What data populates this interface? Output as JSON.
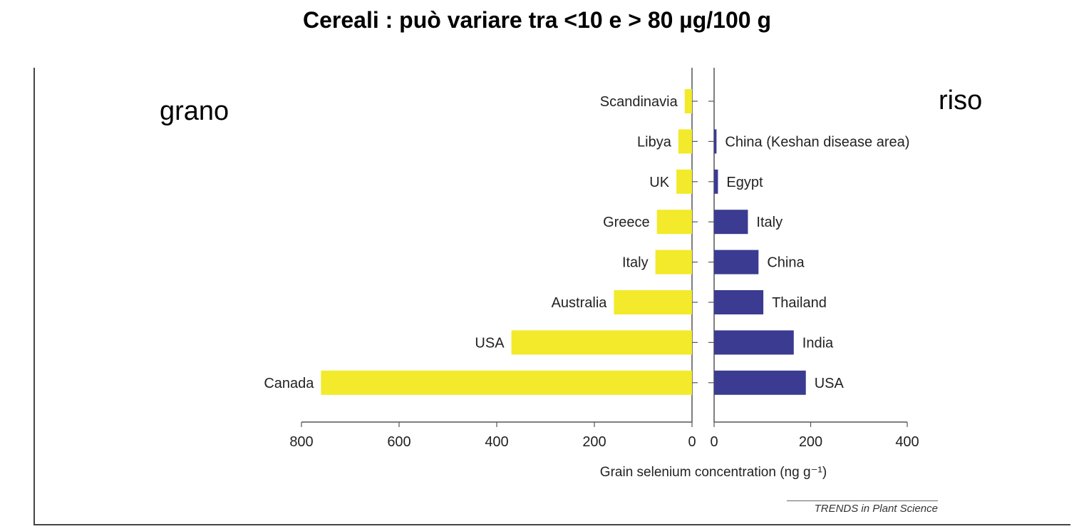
{
  "title": "Cereali : può variare tra <10 e > 80 µg/100 g",
  "annotations": {
    "left": "grano",
    "right": "riso"
  },
  "credit": "TRENDS in Plant Science",
  "colors": {
    "wheat_bar": "#f2ea2a",
    "rice_bar": "#3b3b92",
    "axis": "#555555"
  },
  "chart_data": [
    {
      "type": "bar",
      "orientation": "horizontal",
      "direction": "right-to-left",
      "categories": [
        "Scandinavia",
        "Libya",
        "UK",
        "Greece",
        "Italy",
        "Australia",
        "USA",
        "Canada"
      ],
      "values": [
        15,
        28,
        32,
        72,
        75,
        160,
        370,
        760
      ],
      "xlim": [
        0,
        800
      ],
      "xticks": [
        800,
        600,
        400,
        200,
        0
      ],
      "xlabel": "",
      "color": "#f2ea2a"
    },
    {
      "type": "bar",
      "orientation": "horizontal",
      "direction": "left-to-right",
      "categories": [
        "",
        "China (Keshan disease area)",
        "Egypt",
        "Italy",
        "China",
        "Thailand",
        "India",
        "USA"
      ],
      "values": [
        0,
        5,
        8,
        70,
        92,
        102,
        165,
        190
      ],
      "xlim": [
        0,
        400
      ],
      "xticks": [
        0,
        200,
        400
      ],
      "xlabel": "Grain selenium concentration (ng g⁻¹)",
      "color": "#3b3b92"
    }
  ]
}
